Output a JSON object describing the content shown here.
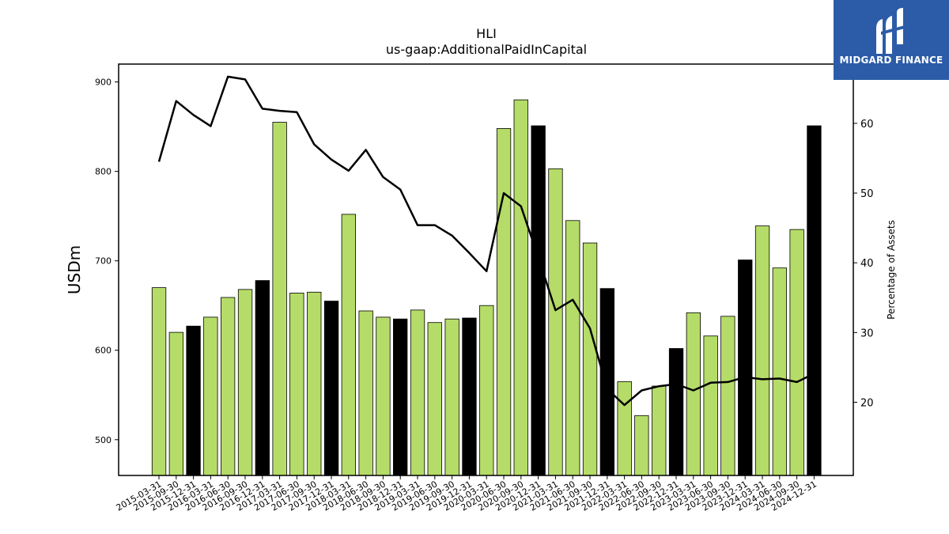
{
  "chart_data": {
    "type": "bar",
    "title": "HLI",
    "subtitle": "us-gaap:AdditionalPaidInCapital",
    "ylabel": "USDm",
    "y2label": "Percentage of Assets",
    "ylim": [
      460,
      920
    ],
    "y2lim": [
      9.5,
      68.5
    ],
    "yticks": [
      500,
      600,
      700,
      800,
      900
    ],
    "y2ticks": [
      20,
      30,
      40,
      50,
      60
    ],
    "categories": [
      "2015-03-31",
      "2015-09-30",
      "2015-12-31",
      "2016-03-31",
      "2016-06-30",
      "2016-09-30",
      "2016-12-31",
      "2017-03-31",
      "2017-06-30",
      "2017-09-30",
      "2017-12-31",
      "2018-03-31",
      "2018-06-30",
      "2018-09-30",
      "2018-12-31",
      "2019-03-31",
      "2019-06-30",
      "2019-09-30",
      "2019-12-31",
      "2020-03-31",
      "2020-06-30",
      "2020-09-30",
      "2020-12-31",
      "2021-03-31",
      "2021-06-30",
      "2021-09-30",
      "2021-12-31",
      "2022-03-31",
      "2022-06-30",
      "2022-09-30",
      "2022-12-31",
      "2023-03-31",
      "2023-06-30",
      "2023-09-30",
      "2023-12-31",
      "2024-03-31",
      "2024-06-30",
      "2024-09-30",
      "2024-12-31"
    ],
    "series": [
      {
        "type": "bar",
        "values": [
          670,
          620,
          627,
          637,
          659,
          668,
          678,
          855,
          664,
          665,
          655,
          752,
          644,
          637,
          635,
          645,
          631,
          635,
          636,
          650,
          848,
          880,
          851,
          803,
          745,
          720,
          669,
          565,
          527,
          560,
          602,
          642,
          616,
          638,
          701,
          739,
          692,
          735,
          851
        ],
        "highlight": [
          false,
          false,
          true,
          false,
          false,
          false,
          true,
          false,
          false,
          false,
          true,
          false,
          false,
          false,
          true,
          false,
          false,
          false,
          true,
          false,
          false,
          false,
          true,
          false,
          false,
          false,
          true,
          false,
          false,
          false,
          true,
          false,
          false,
          false,
          true,
          false,
          false,
          false,
          true
        ]
      },
      {
        "type": "line",
        "axis": "right",
        "values": [
          54.5,
          63.2,
          61.2,
          59.6,
          66.7,
          66.3,
          62.1,
          61.8,
          61.6,
          57.0,
          54.8,
          53.2,
          56.2,
          52.3,
          50.5,
          45.4,
          45.4,
          43.9,
          41.4,
          38.8,
          50.0,
          48.1,
          40.8,
          33.2,
          34.7,
          30.6,
          21.9,
          19.6,
          21.7,
          22.3,
          22.6,
          21.7,
          22.8,
          22.9,
          23.6,
          23.3,
          23.4,
          22.9,
          24.1
        ]
      }
    ],
    "colors": {
      "bar": "#b5dc68",
      "bar_highlight": "#000000",
      "line": "#000000"
    },
    "grid": false,
    "legend": "none"
  },
  "logo": {
    "text": "MIDGARD FINANCE",
    "icon": "midgard-logo-icon",
    "bg": "#2c5ca8"
  }
}
